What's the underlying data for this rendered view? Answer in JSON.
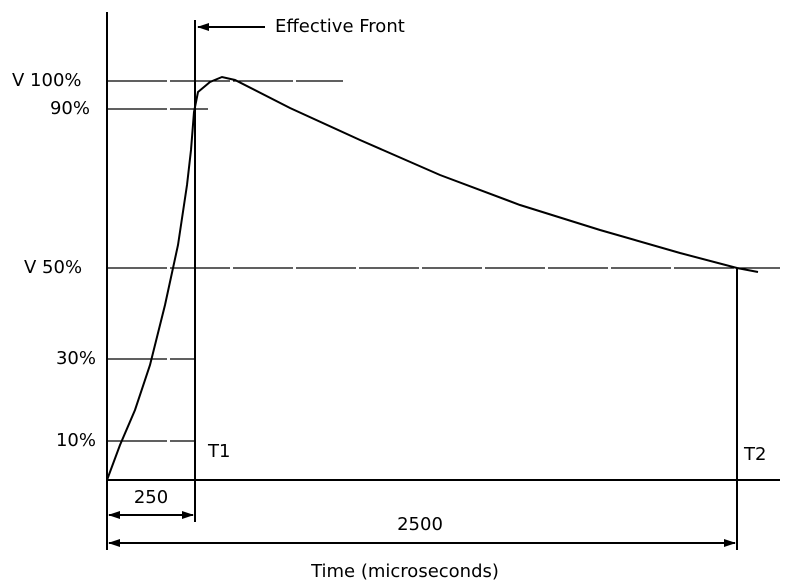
{
  "annotation": "Effective Front",
  "levels": {
    "peak": "V 100%",
    "p90": "90%",
    "half": "V 50%",
    "p30": "30%",
    "p10": "10%"
  },
  "markers": {
    "t1": "T1",
    "t2": "T2"
  },
  "dimensions": {
    "front": "250",
    "tail": "2500"
  },
  "x_axis_label": "Time (microseconds)"
}
